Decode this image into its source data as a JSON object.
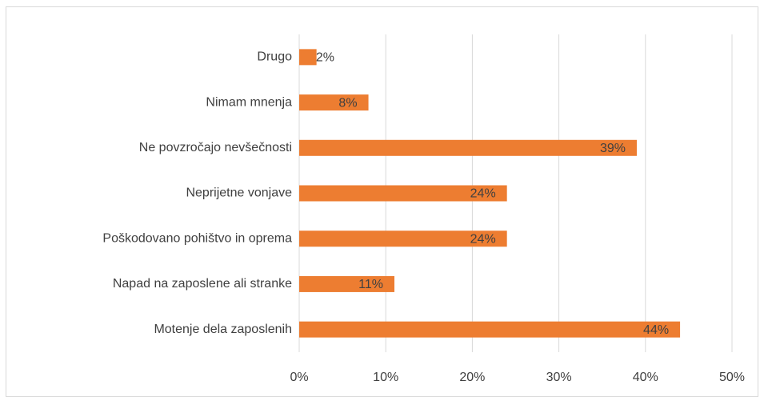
{
  "chart_data": {
    "type": "hbar",
    "categories": [
      "Drugo",
      "Nimam mnenja",
      "Ne povzročajo nevšečnosti",
      "Neprijetne vonjave",
      "Poškodovano pohištvo in oprema",
      "Napad na zaposlene ali stranke",
      "Motenje dela zaposlenih"
    ],
    "values": [
      2,
      8,
      39,
      24,
      24,
      11,
      44
    ],
    "value_labels": [
      "2%",
      "8%",
      "39%",
      "24%",
      "24%",
      "11%",
      "44%"
    ],
    "color": "#ed7d31",
    "xlim": [
      0,
      50
    ],
    "xticks": [
      {
        "value": 0,
        "label": "0%"
      },
      {
        "value": 10,
        "label": "10%"
      },
      {
        "value": 20,
        "label": "20%"
      },
      {
        "value": 30,
        "label": "30%"
      },
      {
        "value": 40,
        "label": "40%"
      },
      {
        "value": 50,
        "label": "50%"
      }
    ],
    "grid": true
  }
}
